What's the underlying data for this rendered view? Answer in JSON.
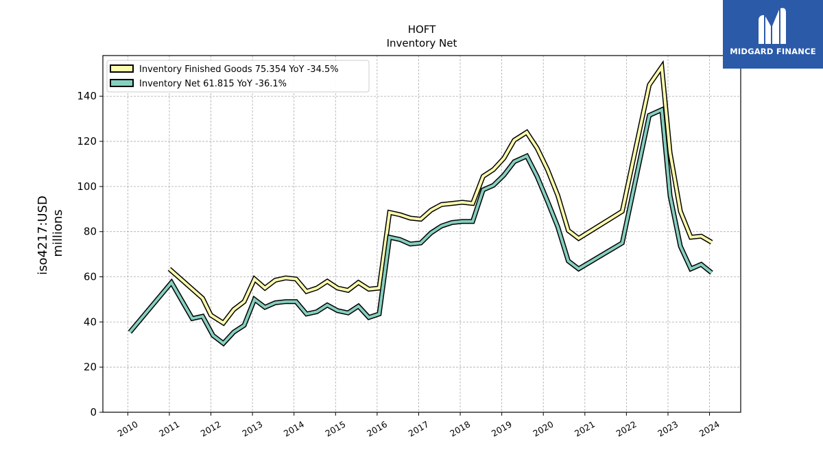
{
  "chart_data": {
    "type": "line",
    "title": "HOFT",
    "subtitle": "Inventory Net",
    "ylabel": "iso4217:USD",
    "ylabel2": "millions",
    "xlim": [
      2009.4,
      2024.75
    ],
    "ylim": [
      0,
      158
    ],
    "yticks": [
      0,
      20,
      40,
      60,
      80,
      100,
      120,
      140
    ],
    "xticks": [
      "2010",
      "2011",
      "2012",
      "2013",
      "2014",
      "2015",
      "2016",
      "2017",
      "2018",
      "2019",
      "2020",
      "2021",
      "2022",
      "2023",
      "2024"
    ],
    "grid": true,
    "legend_position": "upper-left",
    "series": [
      {
        "name": "Inventory Finished Goods  75.354 YoY -34.5%",
        "color": "#fdfbae",
        "points": [
          [
            2011.0,
            63.5
          ],
          [
            2011.8,
            50.5
          ],
          [
            2012.0,
            43
          ],
          [
            2012.3,
            39.5
          ],
          [
            2012.55,
            45.5
          ],
          [
            2012.8,
            49
          ],
          [
            2013.05,
            59
          ],
          [
            2013.3,
            55
          ],
          [
            2013.55,
            58.5
          ],
          [
            2013.8,
            59.5
          ],
          [
            2014.05,
            59
          ],
          [
            2014.3,
            53.5
          ],
          [
            2014.55,
            55
          ],
          [
            2014.8,
            58
          ],
          [
            2015.05,
            55
          ],
          [
            2015.3,
            54
          ],
          [
            2015.55,
            57.5
          ],
          [
            2015.8,
            54.5
          ],
          [
            2016.05,
            55
          ],
          [
            2016.3,
            88.5
          ],
          [
            2016.55,
            87.5
          ],
          [
            2016.8,
            86
          ],
          [
            2017.05,
            85.5
          ],
          [
            2017.3,
            89.5
          ],
          [
            2017.55,
            92
          ],
          [
            2017.8,
            92.5
          ],
          [
            2018.05,
            93
          ],
          [
            2018.3,
            92.5
          ],
          [
            2018.55,
            104.5
          ],
          [
            2018.8,
            107.5
          ],
          [
            2019.05,
            112.5
          ],
          [
            2019.3,
            120.5
          ],
          [
            2019.6,
            124
          ],
          [
            2019.85,
            117
          ],
          [
            2020.1,
            107.5
          ],
          [
            2020.35,
            96
          ],
          [
            2020.6,
            80.5
          ],
          [
            2020.85,
            77
          ],
          [
            2021.9,
            89
          ],
          [
            2022.55,
            145
          ],
          [
            2022.85,
            153
          ],
          [
            2023.05,
            115
          ],
          [
            2023.3,
            89
          ],
          [
            2023.55,
            77.5
          ],
          [
            2023.8,
            78
          ],
          [
            2024.05,
            75.3
          ]
        ]
      },
      {
        "name": "Inventory Net  61.815 YoY -36.1%",
        "color": "#86cfbf",
        "points": [
          [
            2010.05,
            35.5
          ],
          [
            2011.05,
            57.5
          ],
          [
            2011.3,
            49.5
          ],
          [
            2011.55,
            41.5
          ],
          [
            2011.8,
            42.5
          ],
          [
            2012.05,
            34
          ],
          [
            2012.3,
            30.5
          ],
          [
            2012.55,
            35.5
          ],
          [
            2012.8,
            38.5
          ],
          [
            2013.05,
            50
          ],
          [
            2013.3,
            46.5
          ],
          [
            2013.55,
            48.5
          ],
          [
            2013.8,
            49
          ],
          [
            2014.05,
            49
          ],
          [
            2014.3,
            43.5
          ],
          [
            2014.55,
            44.5
          ],
          [
            2014.8,
            47.5
          ],
          [
            2015.05,
            45
          ],
          [
            2015.3,
            44
          ],
          [
            2015.55,
            47
          ],
          [
            2015.8,
            42
          ],
          [
            2016.05,
            43.5
          ],
          [
            2016.3,
            77.5
          ],
          [
            2016.55,
            76.5
          ],
          [
            2016.8,
            74.5
          ],
          [
            2017.05,
            75
          ],
          [
            2017.3,
            79.5
          ],
          [
            2017.55,
            82.5
          ],
          [
            2017.8,
            84
          ],
          [
            2018.05,
            84.5
          ],
          [
            2018.3,
            84.5
          ],
          [
            2018.55,
            98.5
          ],
          [
            2018.8,
            100.5
          ],
          [
            2019.05,
            105
          ],
          [
            2019.3,
            111
          ],
          [
            2019.6,
            113.5
          ],
          [
            2019.85,
            104.5
          ],
          [
            2020.1,
            93.5
          ],
          [
            2020.35,
            82
          ],
          [
            2020.6,
            67
          ],
          [
            2020.85,
            63.5
          ],
          [
            2021.9,
            75
          ],
          [
            2022.55,
            131.5
          ],
          [
            2022.85,
            134
          ],
          [
            2023.05,
            96
          ],
          [
            2023.3,
            73.5
          ],
          [
            2023.55,
            63.5
          ],
          [
            2023.8,
            65.5
          ],
          [
            2024.05,
            61.8
          ]
        ]
      }
    ]
  },
  "logo": {
    "text": "MIDGARD FINANCE",
    "background": "#2b5aa8"
  }
}
